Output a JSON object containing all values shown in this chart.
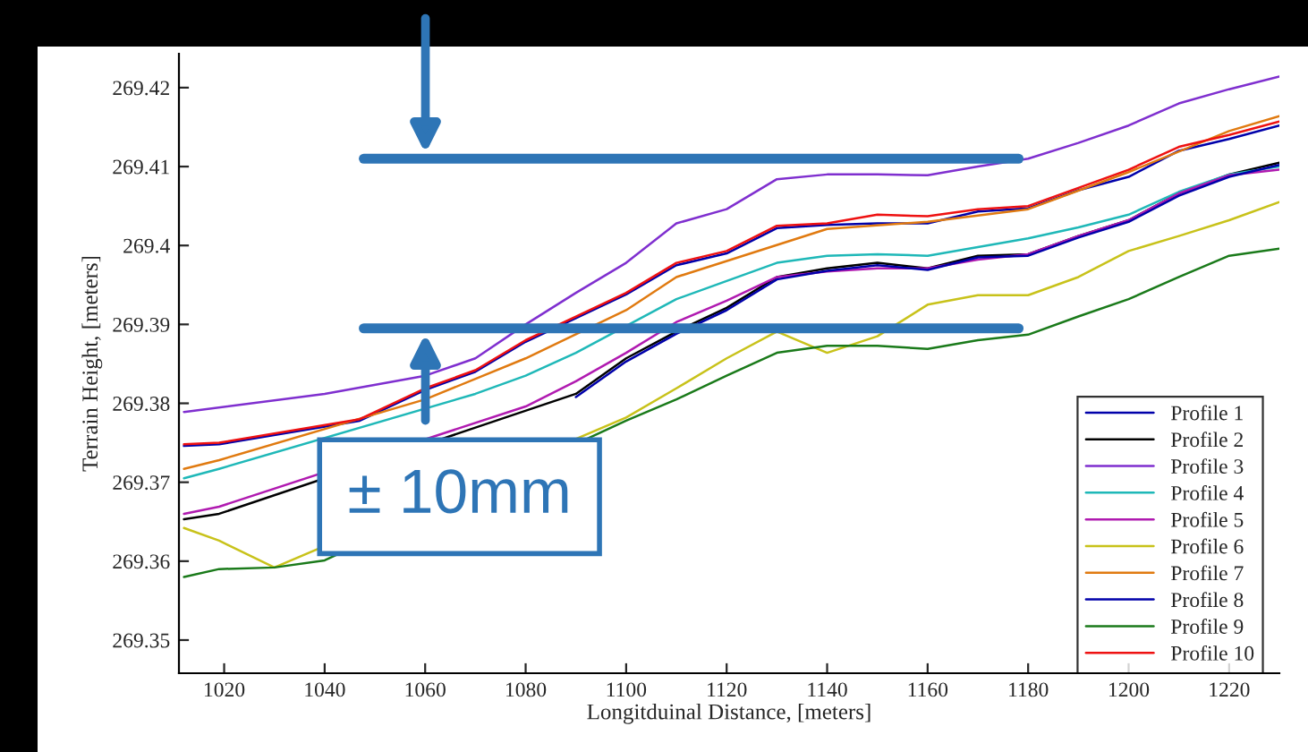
{
  "chart_data": {
    "type": "line",
    "xlabel": "Longitduinal Distance, [meters]",
    "ylabel": "Terrain Height, [meters]",
    "xlim": [
      1011,
      1230
    ],
    "ylim": [
      269.3458,
      269.4243
    ],
    "xticks": [
      1020,
      1040,
      1060,
      1080,
      1100,
      1120,
      1140,
      1160,
      1180,
      1200,
      1220
    ],
    "yticks": [
      269.35,
      269.36,
      269.37,
      269.38,
      269.39,
      269.4,
      269.41,
      269.42
    ],
    "grid": false,
    "legend": "bottom right",
    "marker": "none",
    "line_style": "solid",
    "ref_lines": [
      {
        "axis": "y",
        "value": 269.411,
        "color": "#2e75b6"
      },
      {
        "axis": "y",
        "value": 269.3895,
        "label": "± 10mm",
        "color": "#2e75b6"
      }
    ],
    "series": [
      {
        "name": "Profile 1",
        "color": "#0000aa",
        "x": [
          1012,
          1019,
          1047,
          1060,
          1070,
          1080,
          1090,
          1100,
          1110,
          1120,
          1130,
          1140,
          1150,
          1160,
          1170,
          1180,
          1190,
          1200,
          1210,
          1220,
          1230
        ],
        "values": [
          269.3746,
          269.3748,
          269.3778,
          269.3817,
          269.384,
          269.3878,
          269.3908,
          269.3938,
          269.3975,
          269.399,
          269.4022,
          269.4026,
          269.4028,
          269.4028,
          269.4043,
          269.4047,
          269.407,
          269.4087,
          269.412,
          269.4135,
          269.4152
        ]
      },
      {
        "name": "Profile 2",
        "color": "#000000",
        "x": [
          1012,
          1019,
          1090,
          1100,
          1110,
          1120,
          1130,
          1140,
          1150,
          1160,
          1170,
          1180,
          1190,
          1200,
          1210,
          1220,
          1230
        ],
        "values": [
          269.3653,
          269.366,
          269.3812,
          269.3857,
          269.3891,
          269.3921,
          269.396,
          269.3971,
          269.3978,
          269.3971,
          269.3987,
          269.3989,
          269.4012,
          269.4032,
          269.4066,
          269.409,
          269.4105
        ]
      },
      {
        "name": "Profile 3",
        "color": "#7f2fcf",
        "x": [
          1012,
          1040,
          1060,
          1070,
          1080,
          1090,
          1100,
          1110,
          1120,
          1130,
          1140,
          1150,
          1160,
          1170,
          1180,
          1190,
          1200,
          1210,
          1220,
          1230
        ],
        "values": [
          269.3789,
          269.3812,
          269.3835,
          269.3857,
          269.39,
          269.394,
          269.3978,
          269.4028,
          269.4046,
          269.4084,
          269.409,
          269.409,
          269.4089,
          269.41,
          269.411,
          269.413,
          269.4152,
          269.418,
          269.4198,
          269.4214
        ]
      },
      {
        "name": "Profile 4",
        "color": "#1fb8b8",
        "x": [
          1012,
          1019,
          1070,
          1080,
          1090,
          1100,
          1110,
          1120,
          1130,
          1140,
          1150,
          1160,
          1170,
          1180,
          1190,
          1200,
          1210,
          1220,
          1230
        ],
        "values": [
          269.3705,
          269.3717,
          269.3812,
          269.3835,
          269.3864,
          269.3898,
          269.3932,
          269.3955,
          269.3978,
          269.3987,
          269.3989,
          269.3987,
          269.3998,
          269.4009,
          269.4023,
          269.4039,
          269.4068,
          269.409,
          269.41
        ]
      },
      {
        "name": "Profile 5",
        "color": "#b01ab0",
        "x": [
          1012,
          1019,
          1080,
          1090,
          1100,
          1110,
          1120,
          1130,
          1140,
          1150,
          1160,
          1170,
          1180,
          1190,
          1200,
          1210,
          1220,
          1230
        ],
        "values": [
          269.366,
          269.3669,
          269.3796,
          269.3828,
          269.3864,
          269.3903,
          269.393,
          269.396,
          269.3967,
          269.3971,
          269.3971,
          269.3982,
          269.3989,
          269.4012,
          269.4032,
          269.4066,
          269.4089,
          269.4096
        ]
      },
      {
        "name": "Profile 6",
        "color": "#c8c21a",
        "x": [
          1012,
          1019,
          1030,
          1100,
          1110,
          1120,
          1130,
          1140,
          1150,
          1160,
          1170,
          1180,
          1190,
          1200,
          1210,
          1220,
          1230
        ],
        "values": [
          269.3642,
          269.3626,
          269.3592,
          269.3782,
          269.3819,
          269.3857,
          269.3891,
          269.3864,
          269.3885,
          269.3925,
          269.3937,
          269.3937,
          269.396,
          269.3993,
          269.4012,
          269.4032,
          269.4055
        ]
      },
      {
        "name": "Profile 7",
        "color": "#e07a10",
        "x": [
          1012,
          1019,
          1060,
          1080,
          1100,
          1110,
          1140,
          1160,
          1180,
          1200,
          1220,
          1230
        ],
        "values": [
          269.3717,
          269.3728,
          269.3805,
          269.3857,
          269.3918,
          269.396,
          269.4021,
          269.403,
          269.4046,
          269.4093,
          269.4145,
          269.4164
        ]
      },
      {
        "name": "Profile 8",
        "color": "#0000aa",
        "x": [
          1090,
          1100,
          1110,
          1120,
          1130,
          1140,
          1150,
          1160,
          1170,
          1180,
          1190,
          1200,
          1210,
          1220,
          1230
        ],
        "values": [
          269.3808,
          269.3853,
          269.3888,
          269.3918,
          269.3957,
          269.3968,
          269.3975,
          269.3969,
          269.3985,
          269.3987,
          269.401,
          269.403,
          269.4063,
          269.4087,
          269.4102
        ]
      },
      {
        "name": "Profile 9",
        "color": "#1a7a1a",
        "x": [
          1012,
          1019,
          1030,
          1040,
          1100,
          1110,
          1120,
          1130,
          1140,
          1150,
          1160,
          1170,
          1180,
          1190,
          1200,
          1210,
          1220,
          1230
        ],
        "values": [
          269.358,
          269.359,
          269.3592,
          269.3601,
          269.3778,
          269.3805,
          269.3835,
          269.3864,
          269.3873,
          269.3873,
          269.3869,
          269.388,
          269.3887,
          269.391,
          269.3932,
          269.396,
          269.3987,
          269.3996
        ]
      },
      {
        "name": "Profile 10",
        "color": "#ee1111",
        "x": [
          1012,
          1019,
          1047,
          1060,
          1070,
          1080,
          1090,
          1100,
          1110,
          1120,
          1130,
          1140,
          1150,
          1160,
          1170,
          1180,
          1190,
          1200,
          1210,
          1220,
          1230
        ],
        "values": [
          269.3748,
          269.375,
          269.378,
          269.3819,
          269.3842,
          269.388,
          269.391,
          269.394,
          269.3978,
          269.3993,
          269.4025,
          269.4028,
          269.4039,
          269.4037,
          269.4046,
          269.405,
          269.4073,
          269.4096,
          269.4125,
          269.414,
          269.4157
        ]
      }
    ]
  }
}
